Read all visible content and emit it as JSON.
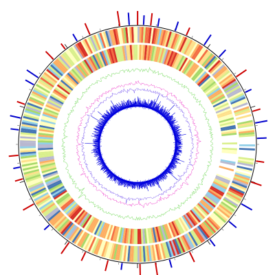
{
  "figure": {
    "kind": "circular genome map",
    "background": "#ffffff"
  },
  "colors": {
    "ring_palette": [
      "#d73027",
      "#f46d43",
      "#fdae61",
      "#fee08b",
      "#ffffbf",
      "#d9ef8b",
      "#a6d96a",
      "#91cfe8",
      "#4575b4",
      "#b8b8d0"
    ],
    "outer_circle": "#000000",
    "tick_major": "#000000",
    "tick_minor": "#888888",
    "forward_markers": "#cc0000",
    "reverse_markers": "#0000cc",
    "green_track": "#8ee07a",
    "magenta_track": "#ee44cc",
    "violet_track": "#7755ee",
    "blue_track": "#0000dd"
  },
  "tracks": [
    {
      "id": "outer-markers",
      "type": "marker ticks outside the circle",
      "colors": [
        "#cc0000",
        "#0000cc"
      ]
    },
    {
      "id": "scale-circle",
      "type": "thin black circle with tick marks"
    },
    {
      "id": "heat-ring-outer",
      "type": "multi-color heat ring"
    },
    {
      "id": "heat-ring-inner",
      "type": "multi-color heat ring"
    },
    {
      "id": "green-profile",
      "type": "line profile",
      "color": "#8ee07a"
    },
    {
      "id": "magenta-profile",
      "type": "line profile",
      "color": "#ee44cc"
    },
    {
      "id": "violet-profile",
      "type": "line profile",
      "color": "#7755ee"
    },
    {
      "id": "blue-spikes",
      "type": "spike histogram",
      "color": "#0000dd"
    }
  ]
}
